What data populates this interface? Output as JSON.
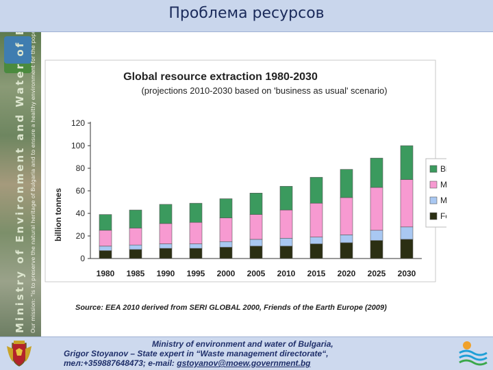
{
  "slide": {
    "title": "Проблема ресурсов",
    "sidebar_text": "Ministry of Environment and Water of Bulgaria",
    "sidebar_mission": "Our mission: \"is to preserve the natural heritage of Bulgaria and to ensure a healthy environment for the population\""
  },
  "footer": {
    "line1": "Ministry of environment and water of Bulgaria,",
    "line2": "Grigor Stoyanov – State expert in “Waste management directorate“,",
    "phone": "тел:+359887648473; e-mail: ",
    "email": "gstoyanov@moew.government.bg"
  },
  "chart_data": {
    "type": "bar",
    "stacked": true,
    "title": "Global resource extraction 1980-2030",
    "subtitle": "(projections 2010-2030 based on 'business as usual' scenario)",
    "ylabel": "billion tonnes",
    "xlabel": "",
    "ylim": [
      0,
      120
    ],
    "yticks": [
      0,
      20,
      40,
      60,
      80,
      100,
      120
    ],
    "grid": false,
    "legend": "right",
    "categories": [
      "1980",
      "1985",
      "1990",
      "1995",
      "2000",
      "2005",
      "2010",
      "2015",
      "2020",
      "2025",
      "2030"
    ],
    "series": [
      {
        "name": "Fossil Fuels",
        "color": "#2b2f13",
        "values": [
          7,
          8,
          9,
          9,
          10,
          11,
          11,
          13,
          14,
          16,
          17
        ]
      },
      {
        "name": "Metals",
        "color": "#a9c8f2",
        "values": [
          4,
          4,
          4,
          4,
          5,
          6,
          7,
          6,
          7,
          9,
          11
        ]
      },
      {
        "name": "Minerals",
        "color": "#f79ad1",
        "values": [
          14,
          15,
          18,
          19,
          21,
          22,
          25,
          30,
          33,
          38,
          42
        ]
      },
      {
        "name": "Biomass",
        "color": "#3b9a5e",
        "values": [
          14,
          16,
          17,
          17,
          17,
          19,
          21,
          23,
          25,
          26,
          30
        ]
      }
    ],
    "source": "Source: EEA 2010 derived from SERI GLOBAL 2000, Friends of the Earth Europe (2009)"
  }
}
